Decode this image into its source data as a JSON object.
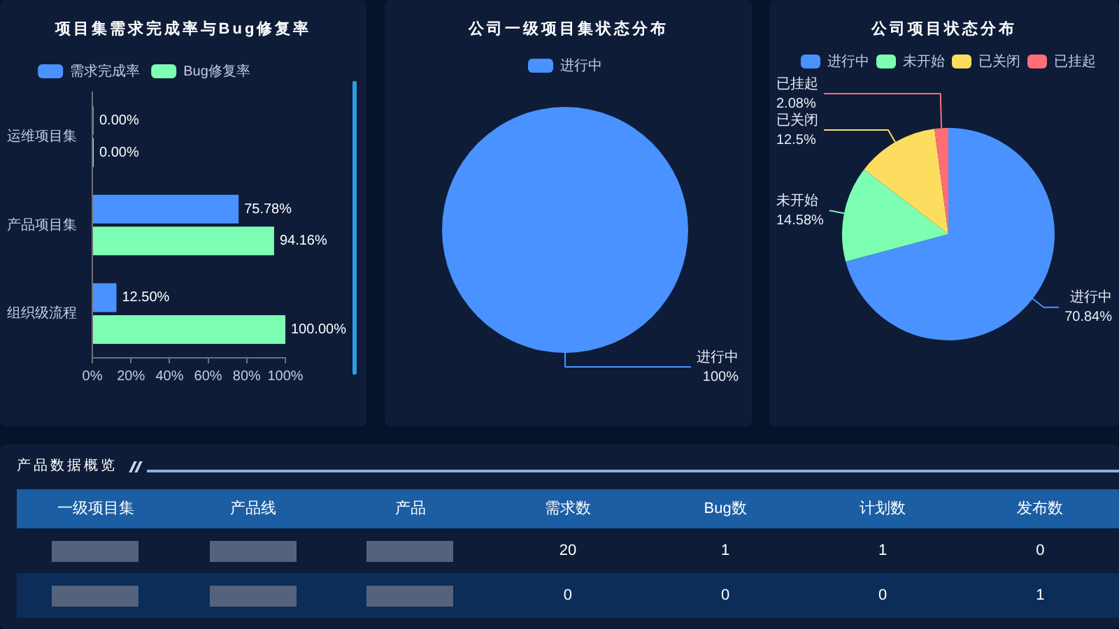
{
  "chart_data": [
    {
      "type": "bar",
      "orientation": "horizontal",
      "title": "项目集需求完成率与Bug修复率",
      "categories": [
        "运维项目集",
        "产品项目集",
        "组织级流程"
      ],
      "series": [
        {
          "name": "需求完成率",
          "color": "#4992ff",
          "values": [
            0,
            75.78,
            12.5
          ],
          "value_labels": [
            "0.00%",
            "75.78%",
            "12.50%"
          ]
        },
        {
          "name": "Bug修复率",
          "color": "#7cffb2",
          "values": [
            0,
            94.16,
            100
          ],
          "value_labels": [
            "0.00%",
            "94.16%",
            "100.00%"
          ]
        }
      ],
      "xlim": [
        0,
        100
      ],
      "xticks": [
        {
          "value": 0,
          "label": "0%"
        },
        {
          "value": 20,
          "label": "20%"
        },
        {
          "value": 40,
          "label": "40%"
        },
        {
          "value": 60,
          "label": "60%"
        },
        {
          "value": 80,
          "label": "80%"
        },
        {
          "value": 100,
          "label": "100%"
        }
      ],
      "legend": "top"
    },
    {
      "type": "pie",
      "title": "公司一级项目集状态分布",
      "categories": [
        "进行中"
      ],
      "values": [
        100
      ],
      "colors": [
        "#4992ff"
      ],
      "value_labels": [
        "100%"
      ],
      "legend": "top"
    },
    {
      "type": "pie",
      "title": "公司项目状态分布",
      "categories": [
        "进行中",
        "未开始",
        "已关闭",
        "已挂起"
      ],
      "values": [
        70.84,
        14.58,
        12.5,
        2.08
      ],
      "colors": [
        "#4992ff",
        "#7cffb2",
        "#fddd60",
        "#ff6e76"
      ],
      "value_labels": [
        "70.84%",
        "14.58%",
        "12.5%",
        "2.08%"
      ],
      "legend": "top"
    },
    {
      "type": "other",
      "title": "产品数据概览",
      "categories": [
        "一级项目集",
        "产品线",
        "产品",
        "需求数",
        "Bug数",
        "计划数",
        "发布数"
      ],
      "cell_labels": [
        [
          null,
          null,
          null,
          "20",
          "1",
          "1",
          "0"
        ],
        [
          null,
          null,
          null,
          "0",
          "0",
          "0",
          "1"
        ]
      ]
    }
  ]
}
